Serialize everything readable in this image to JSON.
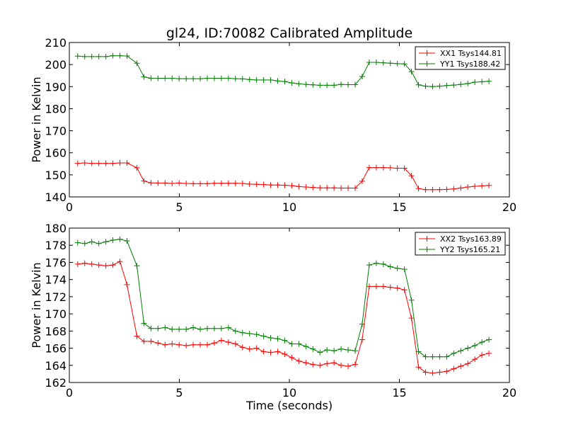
{
  "chart_data": [
    {
      "type": "line",
      "title": "gl24, ID:70082 Calibrated Amplitude",
      "xlabel": "",
      "ylabel": "Power in Kelvin",
      "xlim": [
        0,
        20
      ],
      "ylim": [
        140,
        210
      ],
      "xticks": [
        "0",
        "5",
        "10",
        "15",
        "20"
      ],
      "yticks": [
        "140",
        "150",
        "160",
        "170",
        "180",
        "190",
        "200",
        "210"
      ],
      "legend_position": "top-right",
      "x": [
        0.38,
        0.7,
        1.02,
        1.34,
        1.66,
        1.98,
        2.3,
        2.62,
        3.07,
        3.39,
        3.71,
        4.03,
        4.35,
        4.67,
        4.99,
        5.31,
        5.63,
        5.95,
        6.27,
        6.59,
        6.91,
        7.23,
        7.55,
        7.87,
        8.19,
        8.51,
        8.83,
        9.15,
        9.47,
        9.79,
        10.11,
        10.43,
        10.75,
        11.07,
        11.39,
        11.71,
        12.03,
        12.35,
        12.67,
        12.99,
        13.31,
        13.63,
        13.95,
        14.27,
        14.59,
        14.91,
        15.23,
        15.55,
        15.87,
        16.19,
        16.51,
        16.83,
        17.15,
        17.47,
        17.79,
        18.11,
        18.43,
        18.75,
        19.07
      ],
      "series": [
        {
          "name": "XX1 Tsys144.81",
          "color": "#ff0000",
          "values": [
            155.2,
            155.4,
            155.2,
            155.2,
            155.2,
            155.2,
            155.4,
            155.4,
            153.2,
            147.2,
            146.4,
            146.3,
            146.3,
            146.1,
            146.3,
            146.1,
            146.0,
            146.0,
            146.0,
            146.2,
            146.2,
            146.2,
            146.2,
            146.1,
            145.8,
            145.7,
            145.6,
            145.4,
            145.4,
            145.3,
            145.1,
            144.7,
            144.5,
            144.3,
            144.1,
            144.1,
            144.1,
            144.0,
            144.0,
            144.0,
            147.1,
            153.3,
            153.3,
            153.3,
            153.2,
            153.0,
            153.0,
            149.6,
            143.8,
            143.3,
            143.3,
            143.3,
            143.4,
            143.6,
            144.0,
            144.5,
            144.8,
            145.0,
            145.2
          ]
        },
        {
          "name": "YY1 Tsys188.42",
          "color": "#008000",
          "values": [
            203.8,
            203.6,
            203.6,
            203.6,
            203.6,
            204.0,
            204.0,
            203.9,
            200.6,
            194.4,
            193.8,
            193.8,
            193.8,
            193.8,
            193.6,
            193.6,
            193.6,
            193.6,
            193.8,
            193.8,
            193.8,
            193.8,
            193.6,
            193.5,
            193.2,
            193.0,
            193.0,
            193.0,
            192.6,
            192.3,
            191.7,
            191.3,
            191.0,
            190.8,
            190.6,
            190.6,
            190.6,
            191.0,
            190.9,
            190.9,
            194.6,
            201.0,
            201.0,
            200.8,
            200.6,
            200.4,
            200.3,
            196.8,
            190.8,
            190.2,
            190.0,
            190.2,
            190.5,
            190.7,
            191.0,
            191.4,
            192.0,
            192.2,
            192.4
          ]
        }
      ]
    },
    {
      "type": "line",
      "title": "",
      "xlabel": "Time (seconds)",
      "ylabel": "Power in Kelvin",
      "xlim": [
        0,
        20
      ],
      "ylim": [
        162,
        180
      ],
      "xticks": [
        "0",
        "5",
        "10",
        "15",
        "20"
      ],
      "yticks": [
        "162",
        "164",
        "166",
        "168",
        "170",
        "172",
        "174",
        "176",
        "178",
        "180"
      ],
      "legend_position": "top-right",
      "x": [
        0.38,
        0.7,
        1.02,
        1.34,
        1.66,
        1.98,
        2.3,
        2.62,
        3.07,
        3.39,
        3.71,
        4.03,
        4.35,
        4.67,
        4.99,
        5.31,
        5.63,
        5.95,
        6.27,
        6.59,
        6.91,
        7.23,
        7.55,
        7.87,
        8.19,
        8.51,
        8.83,
        9.15,
        9.47,
        9.79,
        10.11,
        10.43,
        10.75,
        11.07,
        11.39,
        11.71,
        12.03,
        12.35,
        12.67,
        12.99,
        13.31,
        13.63,
        13.95,
        14.27,
        14.59,
        14.91,
        15.23,
        15.55,
        15.87,
        16.19,
        16.51,
        16.83,
        17.15,
        17.47,
        17.79,
        18.11,
        18.43,
        18.75,
        19.07
      ],
      "series": [
        {
          "name": "XX2 Tsys163.89",
          "color": "#ff0000",
          "values": [
            175.8,
            175.9,
            175.8,
            175.7,
            175.6,
            175.7,
            176.1,
            173.4,
            167.4,
            166.8,
            166.8,
            166.6,
            166.4,
            166.5,
            166.4,
            166.3,
            166.4,
            166.4,
            166.4,
            166.6,
            166.9,
            166.7,
            166.5,
            166.1,
            165.9,
            166.0,
            165.6,
            165.5,
            165.6,
            165.3,
            164.9,
            164.5,
            164.3,
            164.1,
            164.0,
            164.2,
            164.3,
            164.0,
            163.9,
            164.1,
            167.0,
            173.2,
            173.2,
            173.2,
            173.1,
            173.0,
            172.8,
            169.5,
            163.8,
            163.2,
            163.1,
            163.2,
            163.3,
            163.6,
            163.9,
            164.2,
            164.7,
            165.2,
            165.4
          ]
        },
        {
          "name": "YY2 Tsys165.21",
          "color": "#008000",
          "values": [
            178.3,
            178.2,
            178.4,
            178.2,
            178.4,
            178.6,
            178.7,
            178.5,
            175.6,
            168.9,
            168.3,
            168.3,
            168.4,
            168.2,
            168.2,
            168.2,
            168.4,
            168.2,
            168.3,
            168.3,
            168.3,
            168.4,
            168.0,
            167.8,
            167.7,
            167.6,
            167.4,
            167.2,
            167.1,
            166.9,
            166.5,
            166.5,
            166.2,
            165.9,
            165.5,
            165.8,
            165.7,
            165.9,
            165.8,
            165.7,
            168.8,
            175.7,
            175.9,
            175.8,
            175.5,
            175.3,
            175.2,
            171.6,
            165.6,
            165.0,
            165.0,
            165.0,
            165.0,
            165.4,
            165.7,
            166.0,
            166.3,
            166.7,
            167.0
          ]
        }
      ]
    }
  ]
}
